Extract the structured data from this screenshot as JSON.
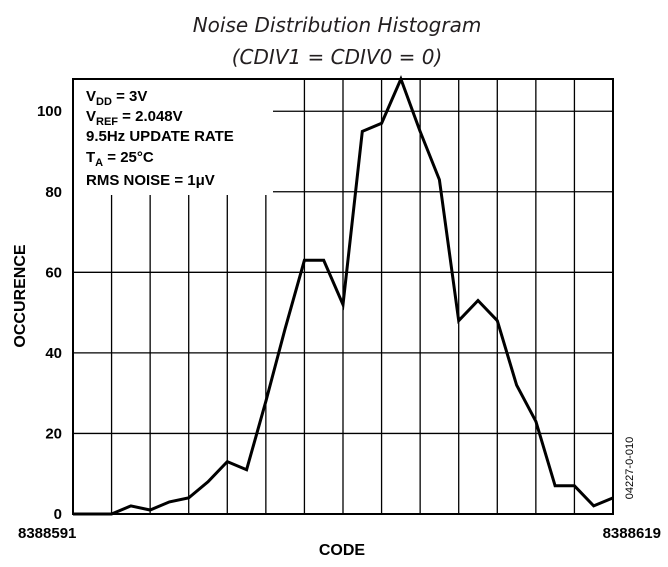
{
  "chart_data": {
    "type": "line",
    "title": "Noise Distribution Histogram",
    "subtitle": "(CDIV1 = CDIV0 = 0)",
    "xlabel": "CODE",
    "ylabel": "OCCURENCE",
    "x_start_label": "8388591",
    "x_end_label": "8388619",
    "xlim": [
      8388591,
      8388619
    ],
    "ylim": [
      0,
      108
    ],
    "yticks": [
      0,
      20,
      40,
      60,
      80,
      100
    ],
    "grid": true,
    "x": [
      8388591,
      8388592,
      8388593,
      8388594,
      8388595,
      8388596,
      8388597,
      8388598,
      8388599,
      8388600,
      8388601,
      8388602,
      8388603,
      8388604,
      8388605,
      8388606,
      8388607,
      8388608,
      8388609,
      8388610,
      8388611,
      8388612,
      8388613,
      8388614,
      8388615,
      8388616,
      8388617,
      8388618,
      8388619
    ],
    "y": [
      0,
      0,
      0,
      2,
      1,
      3,
      4,
      8,
      13,
      11,
      28,
      46,
      63,
      63,
      52,
      95,
      97,
      108,
      95,
      83,
      48,
      53,
      48,
      32,
      23,
      7,
      7,
      2,
      4
    ],
    "annotations": [
      {
        "main": "V",
        "sub": "DD",
        "rest": " = 3V"
      },
      {
        "main": "V",
        "sub": "REF",
        "rest": " = 2.048V"
      },
      {
        "main": "9.5Hz UPDATE RATE",
        "sub": "",
        "rest": ""
      },
      {
        "main": "T",
        "sub": "A",
        "rest": " = 25°C"
      },
      {
        "main": "RMS NOISE = 1μV",
        "sub": "",
        "rest": ""
      }
    ],
    "figure_code": "04227-0-010"
  }
}
